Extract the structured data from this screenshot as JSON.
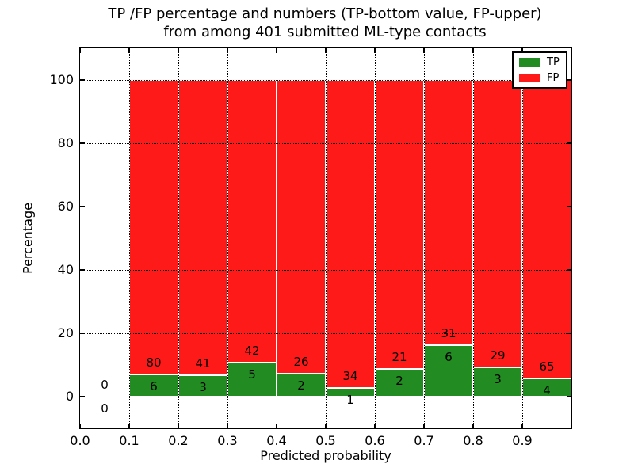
{
  "title": {
    "line1": "TP /FP percentage and numbers (TP-bottom value, FP-upper)",
    "line2": "from among 401 submitted ML-type contacts"
  },
  "axes": {
    "xlabel": "Predicted probability",
    "ylabel": "Percentage",
    "xtick_labels": [
      "0.0",
      "0.1",
      "0.2",
      "0.3",
      "0.4",
      "0.5",
      "0.6",
      "0.7",
      "0.8",
      "0.9"
    ],
    "ytick_labels": [
      "0",
      "20",
      "40",
      "60",
      "80",
      "100"
    ]
  },
  "legend": {
    "items": [
      {
        "label": "TP",
        "color": "#228b22"
      },
      {
        "label": "FP",
        "color": "#ff1a1a"
      }
    ]
  },
  "chart_data": {
    "type": "bar",
    "stacked": true,
    "normalized": "each bar scaled to 100%",
    "title": "TP /FP percentage and numbers (TP-bottom value, FP-upper) from among 401 submitted ML-type contacts",
    "xlabel": "Predicted probability",
    "ylabel": "Percentage",
    "xlim": [
      0.0,
      1.0
    ],
    "ylim": [
      -10,
      110
    ],
    "grid": "dotted",
    "legend_position": "upper right",
    "bin_width": 0.1,
    "bin_starts": [
      0.0,
      0.1,
      0.2,
      0.3,
      0.4,
      0.5,
      0.6,
      0.7,
      0.8,
      0.9
    ],
    "series": [
      {
        "name": "TP",
        "color": "#228b22",
        "counts": [
          0,
          6,
          3,
          5,
          2,
          1,
          2,
          6,
          3,
          4
        ]
      },
      {
        "name": "FP",
        "color": "#ff1a1a",
        "counts": [
          0,
          80,
          41,
          42,
          26,
          34,
          21,
          31,
          29,
          65
        ]
      }
    ]
  }
}
